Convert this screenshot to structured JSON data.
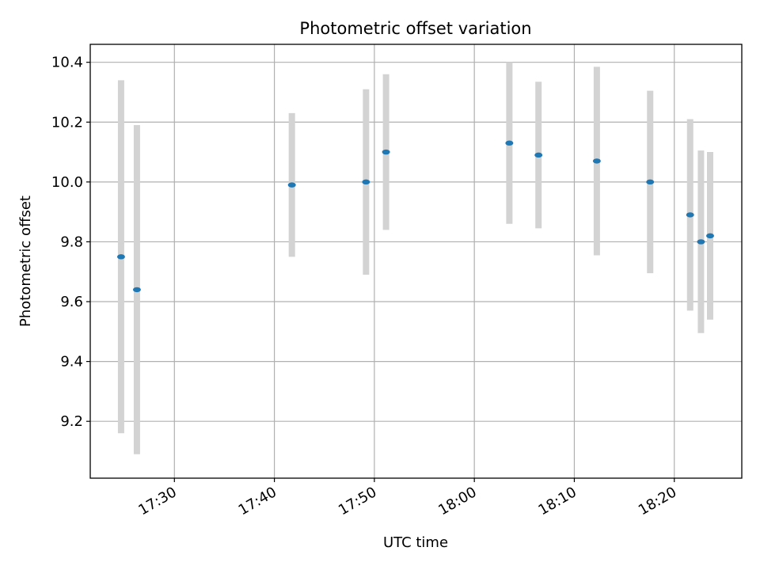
{
  "chart_data": {
    "type": "scatter",
    "title": "Photometric offset variation",
    "xlabel": "UTC time",
    "ylabel": "Photometric offset",
    "x_ticks": [
      "17:30",
      "17:40",
      "17:50",
      "18:00",
      "18:10",
      "18:20"
    ],
    "y_ticks": [
      "9.2",
      "9.4",
      "9.6",
      "9.8",
      "10.0",
      "10.2",
      "10.4"
    ],
    "xlim": [
      "17:21:35",
      "18:26:45"
    ],
    "ylim": [
      9.01,
      10.46
    ],
    "grid": true,
    "legend": "none",
    "colors": {
      "point": "#1f77b4",
      "errorbar": "#d3d3d3",
      "grid": "#b0b0b0"
    },
    "points": [
      {
        "x": "17:24:40",
        "y": 9.75,
        "yerr": 0.59
      },
      {
        "x": "17:26:15",
        "y": 9.64,
        "yerr": 0.55
      },
      {
        "x": "17:41:45",
        "y": 9.99,
        "yerr": 0.24
      },
      {
        "x": "17:49:10",
        "y": 10.0,
        "yerr": 0.31
      },
      {
        "x": "17:51:10",
        "y": 10.1,
        "yerr": 0.26
      },
      {
        "x": "18:03:30",
        "y": 10.13,
        "yerr": 0.27
      },
      {
        "x": "18:06:25",
        "y": 10.09,
        "yerr": 0.245
      },
      {
        "x": "18:12:15",
        "y": 10.07,
        "yerr": 0.315
      },
      {
        "x": "18:17:35",
        "y": 10.0,
        "yerr": 0.305
      },
      {
        "x": "18:21:35",
        "y": 9.89,
        "yerr": 0.32
      },
      {
        "x": "18:22:40",
        "y": 9.8,
        "yerr": 0.305
      },
      {
        "x": "18:23:35",
        "y": 9.82,
        "yerr": 0.28
      }
    ]
  }
}
